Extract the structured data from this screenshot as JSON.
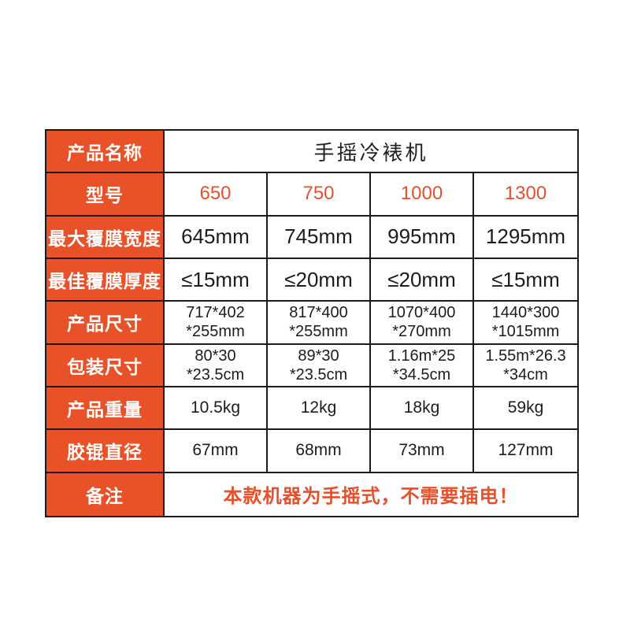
{
  "colors": {
    "header_bg": "#E95228",
    "accent_text": "#E7502B",
    "border": "#1B1B1B",
    "value_text": "#1C1C1C",
    "page_bg": "#FFFFFF"
  },
  "table": {
    "rows": [
      {
        "label": "产品名称",
        "value": "手摇冷裱机"
      },
      {
        "label": "型号",
        "values": [
          "650",
          "750",
          "1000",
          "1300"
        ]
      },
      {
        "label": "最大覆膜宽度",
        "values": [
          "645mm",
          "745mm",
          "995mm",
          "1295mm"
        ]
      },
      {
        "label": "最佳覆膜厚度",
        "values": [
          "≤15mm",
          "≤20mm",
          "≤20mm",
          "≤15mm"
        ]
      },
      {
        "label": "产品尺寸",
        "values": [
          [
            "717*402",
            "*255mm"
          ],
          [
            "817*400",
            "*255mm"
          ],
          [
            "1070*400",
            "*270mm"
          ],
          [
            "1440*300",
            "*1015mm"
          ]
        ]
      },
      {
        "label": "包装尺寸",
        "values": [
          [
            "80*30",
            "*23.5cm"
          ],
          [
            "89*30",
            "*23.5cm"
          ],
          [
            "1.16m*25",
            "*34.5cm"
          ],
          [
            "1.55m*26.3",
            "*34cm"
          ]
        ]
      },
      {
        "label": "产品重量",
        "values": [
          "10.5kg",
          "12kg",
          "18kg",
          "59kg"
        ]
      },
      {
        "label": "胶锟直径",
        "values": [
          "67mm",
          "68mm",
          "73mm",
          "127mm"
        ]
      },
      {
        "label": "备注",
        "value": "本款机器为手摇式，不需要插电！"
      }
    ]
  }
}
